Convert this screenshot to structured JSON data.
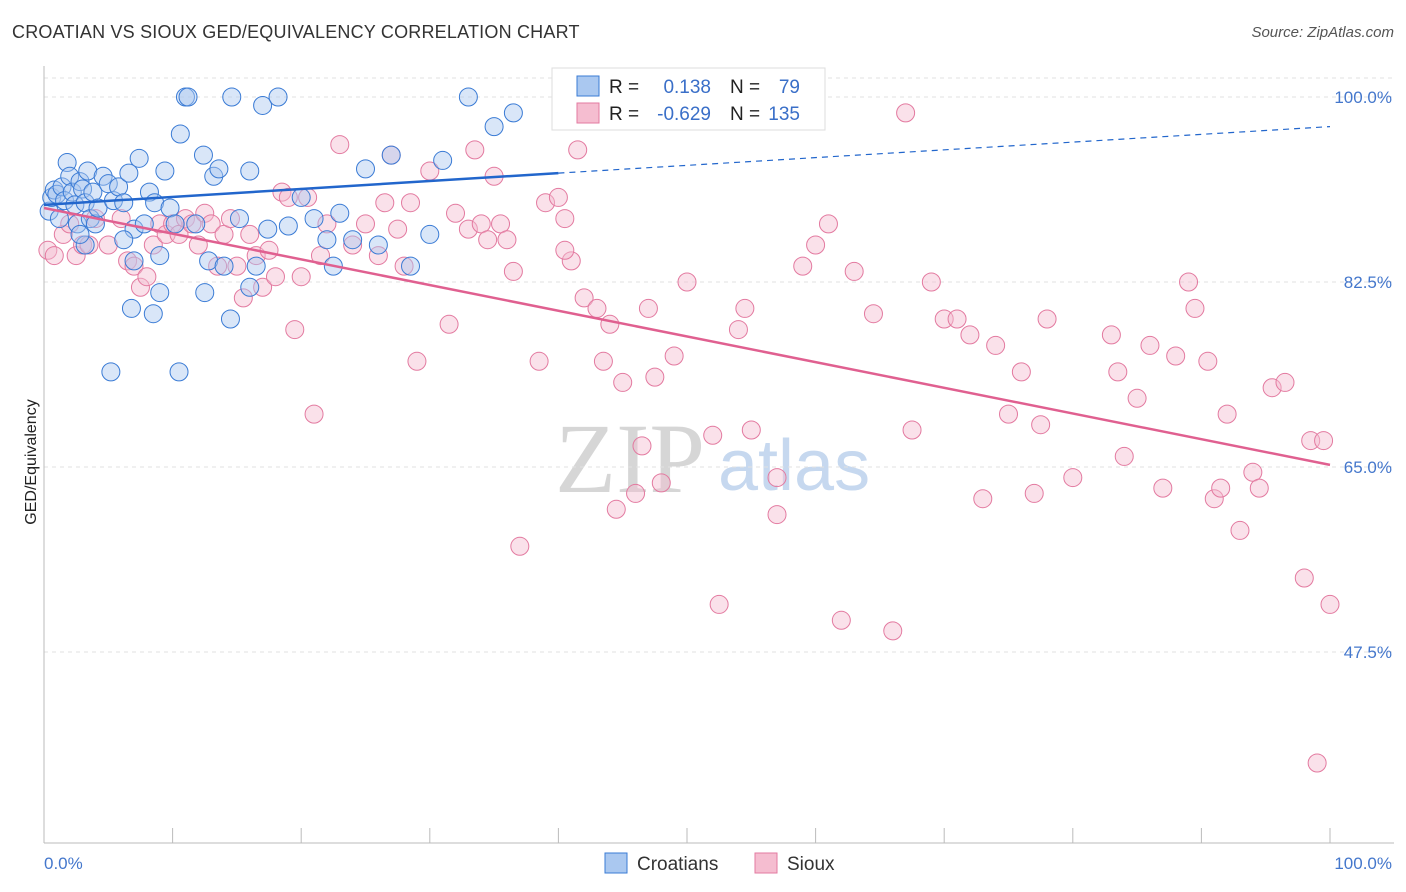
{
  "title": "CROATIAN VS SIOUX GED/EQUIVALENCY CORRELATION CHART",
  "source": "Source: ZipAtlas.com",
  "watermark": {
    "zip": "ZIP",
    "atlas": "atlas"
  },
  "colors": {
    "blue": "#3a7bd5",
    "blue_fill": "#aac8f0",
    "blue_line": "#2266cc",
    "pink": "#e37aa0",
    "pink_fill": "#f5bdd0",
    "pink_line": "#e06090",
    "label": "#4477cc",
    "grid": "#e2e2e2"
  },
  "legend": {
    "rows": [
      {
        "r_label": "R =",
        "r_value": "0.138",
        "n_label": "N =",
        "n_value": "79",
        "series": "Croatians"
      },
      {
        "r_label": "R =",
        "r_value": "-0.629",
        "n_label": "N =",
        "n_value": "135",
        "series": "Sioux"
      }
    ]
  },
  "bottom_legend": {
    "items": [
      "Croatians",
      "Sioux"
    ]
  },
  "chart_data": {
    "type": "scatter",
    "title": "CROATIAN VS SIOUX GED/EQUIVALENCY CORRELATION CHART",
    "xlabel": "",
    "ylabel": "GED/Equivalency",
    "xlim": [
      0,
      100
    ],
    "ylim": [
      30,
      102
    ],
    "x_tick_labels": [
      "0.0%",
      "100.0%"
    ],
    "y_ticks": [
      47.5,
      65.0,
      82.5,
      100.0
    ],
    "y_tick_labels": [
      "47.5%",
      "65.0%",
      "82.5%",
      "100.0%"
    ],
    "legend_position": "top-center",
    "series": [
      {
        "name": "Croatians",
        "r": 0.138,
        "n": 79,
        "trend": {
          "x0": 0,
          "y0": 89.8,
          "x1": 40,
          "y1": 92.8,
          "dash_to_x": 100,
          "dash_to_y": 97.2
        },
        "points": [
          [
            0.4,
            89.2
          ],
          [
            0.6,
            90.5
          ],
          [
            0.8,
            91.2
          ],
          [
            1.0,
            90.8
          ],
          [
            1.2,
            88.5
          ],
          [
            1.4,
            91.5
          ],
          [
            1.6,
            90.2
          ],
          [
            1.8,
            93.8
          ],
          [
            2.0,
            92.5
          ],
          [
            2.2,
            91.0
          ],
          [
            2.4,
            89.8
          ],
          [
            2.6,
            88.0
          ],
          [
            2.8,
            92.0
          ],
          [
            3.0,
            91.3
          ],
          [
            3.2,
            90.0
          ],
          [
            3.4,
            93.0
          ],
          [
            3.6,
            88.5
          ],
          [
            3.8,
            91.0
          ],
          [
            4.0,
            88.0
          ],
          [
            4.2,
            89.5
          ],
          [
            4.6,
            92.5
          ],
          [
            5.0,
            91.8
          ],
          [
            5.4,
            90.2
          ],
          [
            5.8,
            91.5
          ],
          [
            6.2,
            90.0
          ],
          [
            6.6,
            92.8
          ],
          [
            7.0,
            87.5
          ],
          [
            7.4,
            94.2
          ],
          [
            7.8,
            88.0
          ],
          [
            8.2,
            91.0
          ],
          [
            8.6,
            90.0
          ],
          [
            9.0,
            85.0
          ],
          [
            9.4,
            93.0
          ],
          [
            9.8,
            89.5
          ],
          [
            10.2,
            88.0
          ],
          [
            10.6,
            96.5
          ],
          [
            11.0,
            100.0
          ],
          [
            11.2,
            100.0
          ],
          [
            11.8,
            88.0
          ],
          [
            12.4,
            94.5
          ],
          [
            12.8,
            84.5
          ],
          [
            13.2,
            92.5
          ],
          [
            13.6,
            93.2
          ],
          [
            14.0,
            84.0
          ],
          [
            14.6,
            100.0
          ],
          [
            15.2,
            88.5
          ],
          [
            16.0,
            93.0
          ],
          [
            16.5,
            84.0
          ],
          [
            17.0,
            99.2
          ],
          [
            17.4,
            87.5
          ],
          [
            18.2,
            100.0
          ],
          [
            19.0,
            87.8
          ],
          [
            20.0,
            90.5
          ],
          [
            21.0,
            88.5
          ],
          [
            22.0,
            86.5
          ],
          [
            22.5,
            84.0
          ],
          [
            23.0,
            89.0
          ],
          [
            24.0,
            86.5
          ],
          [
            25.0,
            93.2
          ],
          [
            26.0,
            86.0
          ],
          [
            27.0,
            94.5
          ],
          [
            28.5,
            84.0
          ],
          [
            30.0,
            87.0
          ],
          [
            31.0,
            94.0
          ],
          [
            33.0,
            100.0
          ],
          [
            35.0,
            97.2
          ],
          [
            36.5,
            98.5
          ],
          [
            5.2,
            74.0
          ],
          [
            6.8,
            80.0
          ],
          [
            8.5,
            79.5
          ],
          [
            10.5,
            74.0
          ],
          [
            12.5,
            81.5
          ],
          [
            14.5,
            79.0
          ],
          [
            9.0,
            81.5
          ],
          [
            7.0,
            84.5
          ],
          [
            3.2,
            86.0
          ],
          [
            6.2,
            86.5
          ],
          [
            16.0,
            82.0
          ],
          [
            2.8,
            87.0
          ]
        ]
      },
      {
        "name": "Sioux",
        "r": -0.629,
        "n": 135,
        "trend": {
          "x0": 0,
          "y0": 89.5,
          "x1": 100,
          "y1": 65.2
        },
        "points": [
          [
            0.3,
            85.5
          ],
          [
            0.8,
            85.0
          ],
          [
            1.5,
            87.0
          ],
          [
            2.0,
            88.0
          ],
          [
            2.5,
            85.0
          ],
          [
            3.0,
            86.0
          ],
          [
            3.5,
            86.0
          ],
          [
            4.0,
            88.5
          ],
          [
            5.0,
            86.0
          ],
          [
            6.0,
            88.5
          ],
          [
            6.5,
            84.5
          ],
          [
            7.0,
            84.0
          ],
          [
            7.5,
            82.0
          ],
          [
            8.0,
            83.0
          ],
          [
            8.5,
            86.0
          ],
          [
            9.0,
            88.0
          ],
          [
            9.5,
            87.0
          ],
          [
            10.0,
            88.0
          ],
          [
            10.5,
            87.0
          ],
          [
            11.0,
            88.5
          ],
          [
            11.5,
            88.0
          ],
          [
            12.0,
            86.0
          ],
          [
            12.5,
            89.0
          ],
          [
            13.0,
            88.0
          ],
          [
            13.5,
            84.0
          ],
          [
            14.0,
            87.0
          ],
          [
            14.5,
            88.5
          ],
          [
            15.0,
            84.0
          ],
          [
            15.5,
            81.0
          ],
          [
            16.0,
            87.0
          ],
          [
            16.5,
            85.0
          ],
          [
            17.0,
            82.0
          ],
          [
            17.5,
            85.5
          ],
          [
            18.0,
            83.0
          ],
          [
            18.5,
            91.0
          ],
          [
            19.0,
            90.5
          ],
          [
            19.5,
            78.0
          ],
          [
            20.0,
            83.0
          ],
          [
            20.5,
            90.5
          ],
          [
            21.0,
            70.0
          ],
          [
            21.5,
            85.0
          ],
          [
            22.0,
            88.0
          ],
          [
            23.0,
            95.5
          ],
          [
            24.0,
            86.0
          ],
          [
            25.0,
            88.0
          ],
          [
            26.0,
            85.0
          ],
          [
            26.5,
            90.0
          ],
          [
            27.0,
            94.5
          ],
          [
            27.5,
            87.5
          ],
          [
            28.0,
            84.0
          ],
          [
            28.5,
            90.0
          ],
          [
            29.0,
            75.0
          ],
          [
            30.0,
            93.0
          ],
          [
            31.5,
            78.5
          ],
          [
            32.0,
            89.0
          ],
          [
            33.0,
            87.5
          ],
          [
            33.5,
            95.0
          ],
          [
            34.0,
            88.0
          ],
          [
            34.5,
            86.5
          ],
          [
            35.0,
            92.5
          ],
          [
            35.5,
            88.0
          ],
          [
            36.0,
            86.5
          ],
          [
            36.5,
            83.5
          ],
          [
            37.0,
            57.5
          ],
          [
            38.5,
            75.0
          ],
          [
            39.0,
            90.0
          ],
          [
            40.0,
            90.5
          ],
          [
            40.5,
            88.5
          ],
          [
            41.0,
            84.5
          ],
          [
            41.5,
            95.0
          ],
          [
            42.0,
            81.0
          ],
          [
            43.0,
            80.0
          ],
          [
            43.5,
            75.0
          ],
          [
            44.0,
            78.5
          ],
          [
            45.0,
            73.0
          ],
          [
            46.0,
            62.5
          ],
          [
            46.5,
            67.0
          ],
          [
            47.0,
            80.0
          ],
          [
            47.5,
            73.5
          ],
          [
            48.0,
            63.5
          ],
          [
            49.0,
            75.5
          ],
          [
            50.0,
            82.5
          ],
          [
            52.0,
            68.0
          ],
          [
            52.5,
            52.0
          ],
          [
            54.0,
            78.0
          ],
          [
            54.5,
            80.0
          ],
          [
            55.0,
            68.5
          ],
          [
            57.0,
            64.0
          ],
          [
            59.0,
            84.0
          ],
          [
            60.0,
            86.0
          ],
          [
            61.0,
            88.0
          ],
          [
            62.0,
            50.5
          ],
          [
            63.0,
            83.5
          ],
          [
            64.5,
            79.5
          ],
          [
            66.0,
            49.5
          ],
          [
            67.0,
            98.5
          ],
          [
            67.5,
            68.5
          ],
          [
            69.0,
            82.5
          ],
          [
            70.0,
            79.0
          ],
          [
            71.0,
            79.0
          ],
          [
            72.0,
            77.5
          ],
          [
            73.0,
            62.0
          ],
          [
            74.0,
            76.5
          ],
          [
            75.0,
            70.0
          ],
          [
            76.0,
            74.0
          ],
          [
            77.0,
            62.5
          ],
          [
            77.5,
            69.0
          ],
          [
            78.0,
            79.0
          ],
          [
            80.0,
            64.0
          ],
          [
            83.0,
            77.5
          ],
          [
            83.5,
            74.0
          ],
          [
            84.0,
            66.0
          ],
          [
            85.0,
            71.5
          ],
          [
            86.0,
            76.5
          ],
          [
            87.0,
            63.0
          ],
          [
            88.0,
            75.5
          ],
          [
            89.0,
            82.5
          ],
          [
            89.5,
            80.0
          ],
          [
            90.5,
            75.0
          ],
          [
            91.0,
            62.0
          ],
          [
            91.5,
            63.0
          ],
          [
            92.0,
            70.0
          ],
          [
            93.0,
            59.0
          ],
          [
            94.0,
            64.5
          ],
          [
            94.5,
            63.0
          ],
          [
            95.5,
            72.5
          ],
          [
            96.5,
            73.0
          ],
          [
            98.0,
            54.5
          ],
          [
            98.5,
            67.5
          ],
          [
            99.0,
            37.0
          ],
          [
            99.5,
            67.5
          ],
          [
            100.0,
            52.0
          ],
          [
            57.0,
            60.5
          ],
          [
            44.5,
            61.0
          ],
          [
            40.5,
            85.5
          ]
        ]
      }
    ]
  }
}
